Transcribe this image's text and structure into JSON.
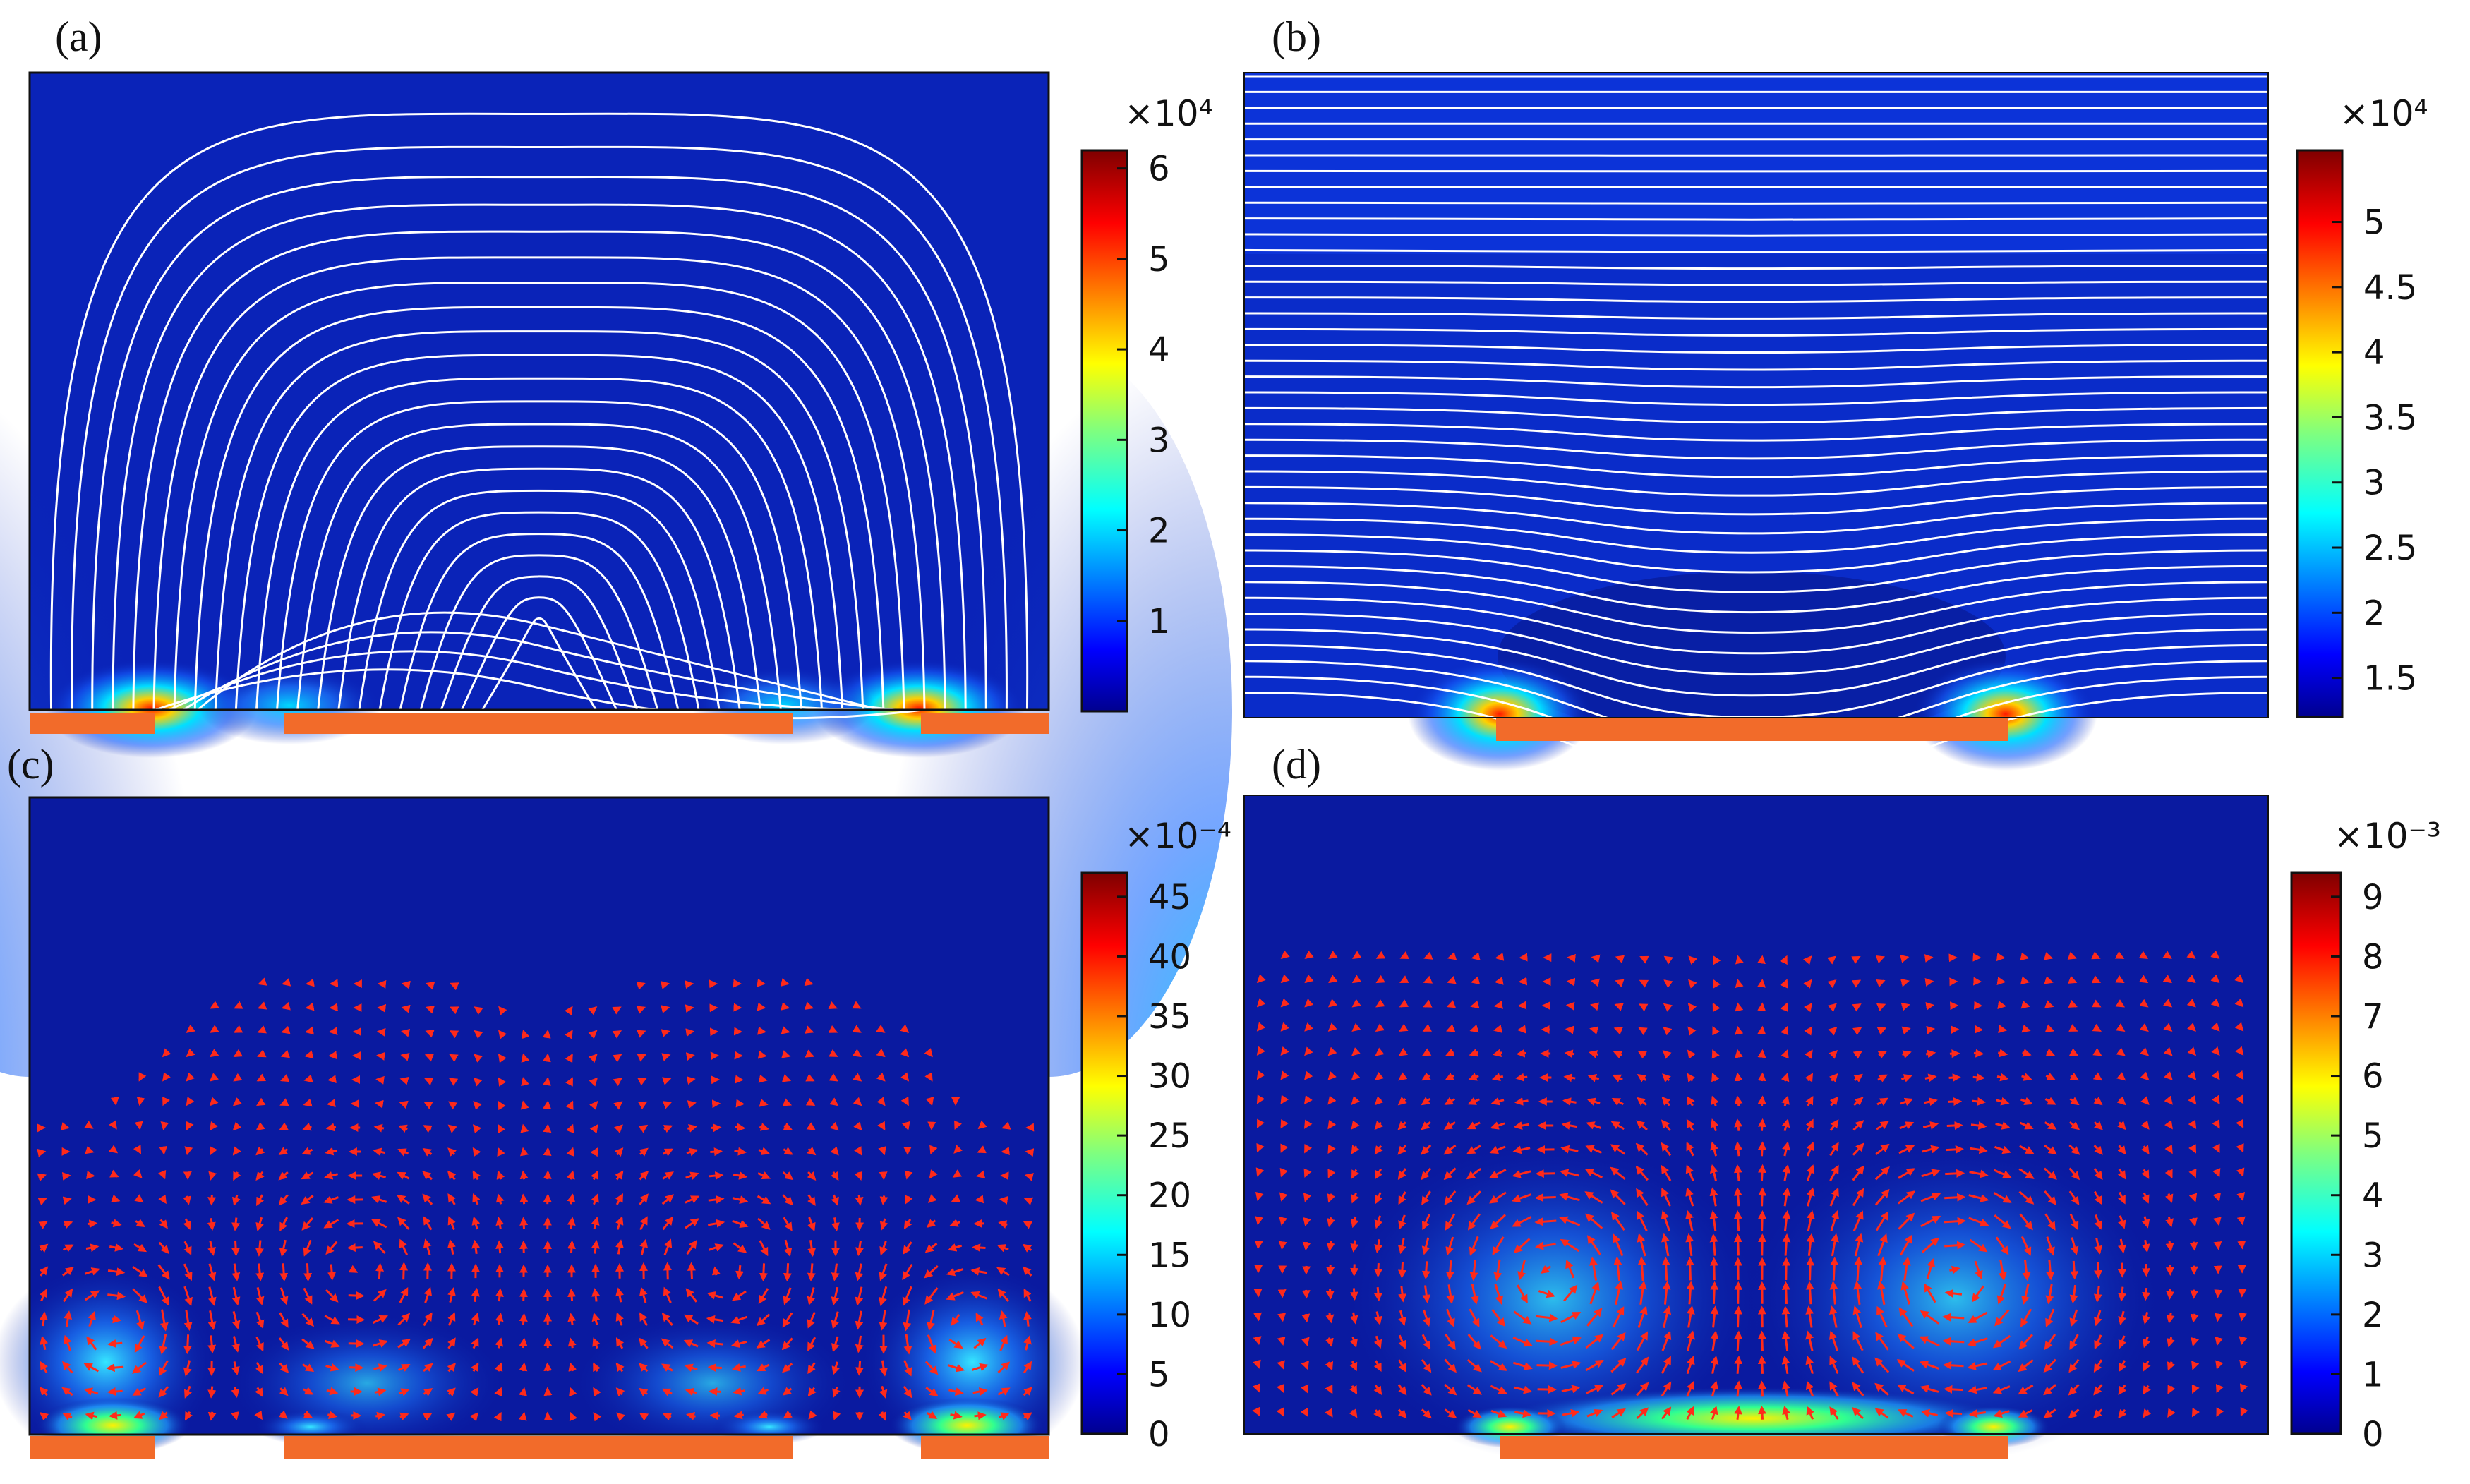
{
  "figure": {
    "panels": [
      {
        "id": "a",
        "label": "(a)",
        "kind": "streamlines",
        "colorbar_exponent": "×10⁴",
        "colorbar_range": [
          0,
          6.2
        ],
        "colorbar_ticks": [
          "1",
          "2",
          "3",
          "4",
          "5",
          "6"
        ],
        "colorbar_tick_values": [
          1,
          2,
          3,
          4,
          5,
          6
        ],
        "electrodes": 3
      },
      {
        "id": "b",
        "label": "(b)",
        "kind": "streamlines",
        "colorbar_exponent": "×10⁴",
        "colorbar_range": [
          1.2,
          5.55
        ],
        "colorbar_ticks": [
          "1.5",
          "2",
          "2.5",
          "3",
          "3.5",
          "4",
          "4.5",
          "5"
        ],
        "colorbar_tick_values": [
          1.5,
          2,
          2.5,
          3,
          3.5,
          4,
          4.5,
          5
        ],
        "electrodes": 1
      },
      {
        "id": "c",
        "label": "(c)",
        "kind": "arrows",
        "colorbar_exponent": "×10⁻⁴",
        "colorbar_range": [
          0,
          47
        ],
        "colorbar_ticks": [
          "0",
          "5",
          "10",
          "15",
          "20",
          "25",
          "30",
          "35",
          "40",
          "45"
        ],
        "colorbar_tick_values": [
          0,
          5,
          10,
          15,
          20,
          25,
          30,
          35,
          40,
          45
        ],
        "electrodes": 3
      },
      {
        "id": "d",
        "label": "(d)",
        "kind": "arrows",
        "colorbar_exponent": "×10⁻³",
        "colorbar_range": [
          0,
          9.4
        ],
        "colorbar_ticks": [
          "0",
          "1",
          "2",
          "3",
          "4",
          "5",
          "6",
          "7",
          "8",
          "9"
        ],
        "colorbar_tick_values": [
          0,
          1,
          2,
          3,
          4,
          5,
          6,
          7,
          8,
          9
        ],
        "electrodes": 1
      }
    ],
    "colors": {
      "field_background": "#0a23b8",
      "streamline": "#ffffff",
      "arrow": "#ff2a1a",
      "electrode": "#f26b2a"
    }
  },
  "chart_data": [
    {
      "type": "heatmap",
      "title": "(a)",
      "colorbar_scale": "×10⁴",
      "colorbar_range": [
        0,
        6.2
      ],
      "colorbar_ticks": [
        1,
        2,
        3,
        4,
        5,
        6
      ],
      "overlay": "white streamlines",
      "electrodes": 3,
      "colormap": "jet"
    },
    {
      "type": "heatmap",
      "title": "(b)",
      "colorbar_scale": "×10⁴",
      "colorbar_range": [
        1.2,
        5.55
      ],
      "colorbar_ticks": [
        1.5,
        2,
        2.5,
        3,
        3.5,
        4,
        4.5,
        5
      ],
      "overlay": "white streamlines",
      "electrodes": 1,
      "colormap": "jet"
    },
    {
      "type": "heatmap",
      "title": "(c)",
      "colorbar_scale": "×10⁻⁴",
      "colorbar_range": [
        0,
        47
      ],
      "colorbar_ticks": [
        0,
        5,
        10,
        15,
        20,
        25,
        30,
        35,
        40,
        45
      ],
      "overlay": "red velocity arrows",
      "electrodes": 3,
      "colormap": "jet"
    },
    {
      "type": "heatmap",
      "title": "(d)",
      "colorbar_scale": "×10⁻³",
      "colorbar_range": [
        0,
        9.4
      ],
      "colorbar_ticks": [
        0,
        1,
        2,
        3,
        4,
        5,
        6,
        7,
        8,
        9
      ],
      "overlay": "red velocity arrows",
      "electrodes": 1,
      "colormap": "jet"
    }
  ]
}
